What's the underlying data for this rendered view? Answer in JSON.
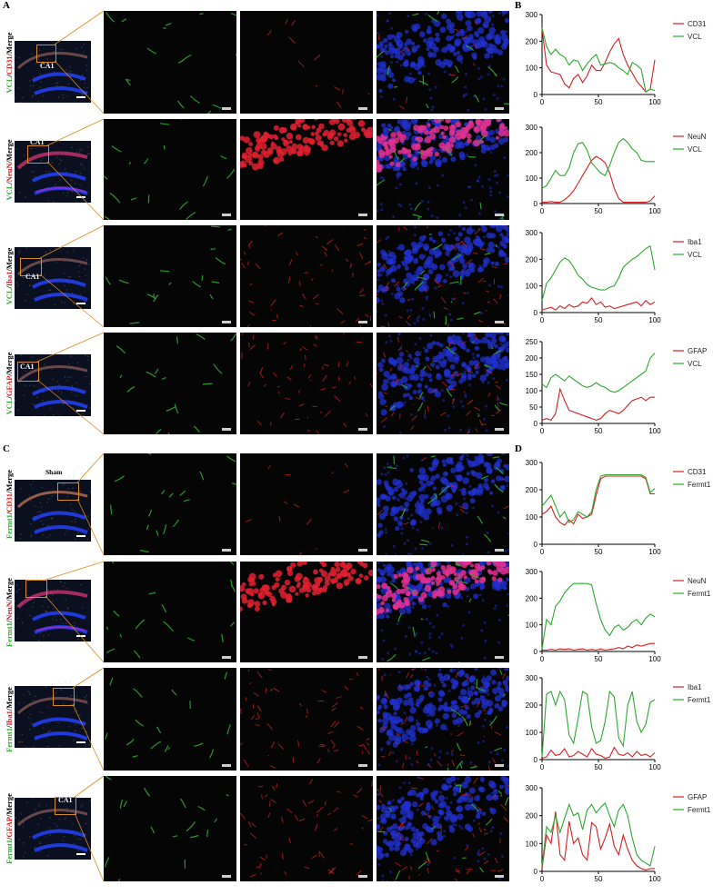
{
  "figure": {
    "panels": {
      "A": "A",
      "B": "B",
      "C": "C",
      "D": "D"
    },
    "overview_label": "CA1",
    "sham_label": "Sham",
    "rows": [
      {
        "green": "VCL",
        "red": "CD31",
        "merge": "Merge"
      },
      {
        "green": "VCL",
        "red": "NeuN",
        "merge": "Merge"
      },
      {
        "green": "VCL",
        "red": "Iba1",
        "merge": "Merge"
      },
      {
        "green": "VCL",
        "red": "GFAP",
        "merge": "Merge"
      },
      {
        "green": "Fermt1",
        "red": "CD31",
        "merge": "Merge"
      },
      {
        "green": "Fermt1",
        "red": "NeuN",
        "merge": "Merge"
      },
      {
        "green": "Fermt1",
        "red": "Iba1",
        "merge": "Merge"
      },
      {
        "green": "Fermt1",
        "red": "GFAP",
        "merge": "Merge"
      }
    ],
    "colors": {
      "green": "#2ea82e",
      "red": "#d42020",
      "blue": "#2030d0",
      "ca1_box": "#d98a1e"
    }
  },
  "chart_data": [
    {
      "type": "line",
      "panel": "B",
      "xlim": [
        0,
        100
      ],
      "ylim": [
        0,
        300
      ],
      "yticks": [
        0,
        100,
        200,
        300
      ],
      "xticks": [
        0,
        50,
        100
      ],
      "x": [
        0,
        4,
        8,
        12,
        16,
        20,
        24,
        28,
        32,
        36,
        40,
        44,
        48,
        52,
        56,
        60,
        64,
        68,
        72,
        76,
        80,
        84,
        88,
        92,
        96,
        100
      ],
      "series": [
        {
          "name": "CD31",
          "color": "#d42020",
          "values": [
            245,
            110,
            85,
            80,
            75,
            40,
            25,
            60,
            75,
            45,
            70,
            110,
            90,
            90,
            120,
            160,
            190,
            210,
            150,
            110,
            80,
            50,
            30,
            10,
            20,
            130
          ]
        },
        {
          "name": "VCL",
          "color": "#2ea82e",
          "values": [
            250,
            180,
            150,
            170,
            150,
            140,
            110,
            130,
            125,
            90,
            115,
            135,
            150,
            110,
            115,
            120,
            115,
            100,
            90,
            75,
            120,
            110,
            95,
            10,
            20,
            15
          ]
        }
      ]
    },
    {
      "type": "line",
      "panel": "B",
      "xlim": [
        0,
        100
      ],
      "ylim": [
        0,
        300
      ],
      "yticks": [
        0,
        100,
        200,
        300
      ],
      "xticks": [
        0,
        50,
        100
      ],
      "x": [
        0,
        4,
        8,
        12,
        16,
        20,
        24,
        28,
        32,
        36,
        40,
        44,
        48,
        52,
        56,
        60,
        64,
        68,
        72,
        76,
        80,
        84,
        88,
        92,
        96,
        100
      ],
      "series": [
        {
          "name": "NeuN",
          "color": "#d42020",
          "values": [
            5,
            5,
            8,
            5,
            5,
            15,
            30,
            50,
            80,
            110,
            140,
            170,
            185,
            175,
            160,
            120,
            60,
            20,
            5,
            5,
            5,
            5,
            5,
            5,
            10,
            30
          ]
        },
        {
          "name": "VCL",
          "color": "#2ea82e",
          "values": [
            60,
            70,
            100,
            130,
            110,
            110,
            140,
            200,
            235,
            240,
            210,
            160,
            140,
            120,
            110,
            150,
            200,
            240,
            255,
            240,
            215,
            200,
            170,
            165,
            165,
            165
          ]
        }
      ]
    },
    {
      "type": "line",
      "panel": "B",
      "xlim": [
        0,
        100
      ],
      "ylim": [
        0,
        300
      ],
      "yticks": [
        0,
        100,
        200,
        300
      ],
      "xticks": [
        0,
        50,
        100
      ],
      "x": [
        0,
        4,
        8,
        12,
        16,
        20,
        24,
        28,
        32,
        36,
        40,
        44,
        48,
        52,
        56,
        60,
        64,
        68,
        72,
        76,
        80,
        84,
        88,
        92,
        96,
        100
      ],
      "series": [
        {
          "name": "Iba1",
          "color": "#d42020",
          "values": [
            10,
            15,
            20,
            10,
            25,
            15,
            30,
            20,
            25,
            40,
            35,
            55,
            30,
            40,
            20,
            25,
            15,
            20,
            25,
            30,
            35,
            40,
            25,
            45,
            30,
            40
          ]
        },
        {
          "name": "VCL",
          "color": "#2ea82e",
          "values": [
            45,
            110,
            130,
            160,
            190,
            205,
            195,
            170,
            140,
            125,
            105,
            95,
            90,
            85,
            85,
            95,
            100,
            130,
            170,
            185,
            200,
            210,
            225,
            240,
            250,
            160
          ]
        }
      ]
    },
    {
      "type": "line",
      "panel": "B",
      "xlim": [
        0,
        100
      ],
      "ylim": [
        0,
        250
      ],
      "yticks": [
        0,
        50,
        100,
        150,
        200,
        250
      ],
      "xticks": [
        0,
        50,
        100
      ],
      "x": [
        0,
        4,
        8,
        12,
        16,
        20,
        24,
        28,
        32,
        36,
        40,
        44,
        48,
        52,
        56,
        60,
        64,
        68,
        72,
        76,
        80,
        84,
        88,
        92,
        96,
        100
      ],
      "series": [
        {
          "name": "GFAP",
          "color": "#d42020",
          "values": [
            10,
            15,
            10,
            30,
            105,
            70,
            40,
            35,
            30,
            25,
            20,
            15,
            10,
            15,
            30,
            40,
            35,
            30,
            40,
            55,
            70,
            75,
            80,
            70,
            80,
            80
          ]
        },
        {
          "name": "VCL",
          "color": "#2ea82e",
          "values": [
            120,
            110,
            140,
            150,
            140,
            130,
            145,
            135,
            125,
            115,
            110,
            115,
            125,
            115,
            110,
            100,
            95,
            100,
            110,
            120,
            130,
            140,
            150,
            160,
            200,
            215
          ]
        }
      ]
    },
    {
      "type": "line",
      "panel": "D",
      "xlim": [
        0,
        100
      ],
      "ylim": [
        0,
        300
      ],
      "yticks": [
        0,
        100,
        200,
        300
      ],
      "xticks": [
        0,
        50,
        100
      ],
      "x": [
        0,
        4,
        8,
        12,
        16,
        20,
        24,
        28,
        32,
        36,
        40,
        44,
        48,
        52,
        56,
        60,
        64,
        68,
        72,
        76,
        80,
        84,
        88,
        92,
        96,
        100
      ],
      "series": [
        {
          "name": "CD31",
          "color": "#d42020",
          "values": [
            110,
            120,
            140,
            100,
            80,
            70,
            90,
            75,
            110,
            95,
            100,
            110,
            180,
            240,
            250,
            250,
            250,
            250,
            250,
            250,
            250,
            250,
            250,
            240,
            185,
            185
          ]
        },
        {
          "name": "Fermt1",
          "color": "#2ea82e",
          "values": [
            140,
            160,
            180,
            140,
            100,
            120,
            80,
            90,
            120,
            110,
            100,
            120,
            200,
            250,
            255,
            255,
            255,
            255,
            255,
            255,
            255,
            255,
            255,
            245,
            190,
            205
          ]
        }
      ]
    },
    {
      "type": "line",
      "panel": "D",
      "xlim": [
        0,
        100
      ],
      "ylim": [
        0,
        300
      ],
      "yticks": [
        0,
        100,
        200,
        300
      ],
      "xticks": [
        0,
        50,
        100
      ],
      "x": [
        0,
        4,
        8,
        12,
        16,
        20,
        24,
        28,
        32,
        36,
        40,
        44,
        48,
        52,
        56,
        60,
        64,
        68,
        72,
        76,
        80,
        84,
        88,
        92,
        96,
        100
      ],
      "series": [
        {
          "name": "NeuN",
          "color": "#d42020",
          "values": [
            5,
            5,
            8,
            5,
            10,
            8,
            10,
            5,
            8,
            10,
            5,
            8,
            5,
            10,
            5,
            8,
            10,
            15,
            10,
            20,
            15,
            25,
            20,
            25,
            30,
            30
          ]
        },
        {
          "name": "Fermt1",
          "color": "#2ea82e",
          "values": [
            10,
            120,
            100,
            170,
            190,
            220,
            240,
            255,
            255,
            255,
            255,
            250,
            180,
            120,
            80,
            60,
            90,
            100,
            80,
            90,
            110,
            120,
            100,
            125,
            140,
            130
          ]
        }
      ]
    },
    {
      "type": "line",
      "panel": "D",
      "xlim": [
        0,
        100
      ],
      "ylim": [
        0,
        300
      ],
      "yticks": [
        0,
        100,
        200,
        300
      ],
      "xticks": [
        0,
        50,
        100
      ],
      "x": [
        0,
        4,
        8,
        12,
        16,
        20,
        24,
        28,
        32,
        36,
        40,
        44,
        48,
        52,
        56,
        60,
        64,
        68,
        72,
        76,
        80,
        84,
        88,
        92,
        96,
        100
      ],
      "series": [
        {
          "name": "Iba1",
          "color": "#d42020",
          "values": [
            5,
            10,
            35,
            15,
            20,
            40,
            10,
            15,
            30,
            20,
            10,
            40,
            20,
            15,
            5,
            10,
            45,
            20,
            15,
            25,
            10,
            30,
            15,
            20,
            10,
            25
          ]
        },
        {
          "name": "Fermt1",
          "color": "#2ea82e",
          "values": [
            10,
            240,
            250,
            200,
            250,
            220,
            90,
            60,
            150,
            250,
            240,
            120,
            60,
            70,
            140,
            250,
            230,
            80,
            50,
            200,
            250,
            140,
            100,
            130,
            210,
            220
          ]
        }
      ]
    },
    {
      "type": "line",
      "panel": "D",
      "xlim": [
        0,
        100
      ],
      "ylim": [
        0,
        300
      ],
      "yticks": [
        0,
        100,
        200,
        300
      ],
      "xticks": [
        0,
        50,
        100
      ],
      "x": [
        0,
        4,
        8,
        12,
        16,
        20,
        24,
        28,
        32,
        36,
        40,
        44,
        48,
        52,
        56,
        60,
        64,
        68,
        72,
        76,
        80,
        84,
        88,
        92,
        96,
        100
      ],
      "series": [
        {
          "name": "GFAP",
          "color": "#d42020",
          "values": [
            10,
            130,
            100,
            215,
            60,
            40,
            180,
            100,
            120,
            60,
            40,
            175,
            160,
            80,
            120,
            170,
            90,
            60,
            130,
            80,
            40,
            20,
            10,
            5,
            10,
            10
          ]
        },
        {
          "name": "Fermt1",
          "color": "#2ea82e",
          "values": [
            20,
            160,
            140,
            200,
            140,
            190,
            240,
            200,
            210,
            150,
            220,
            240,
            210,
            230,
            245,
            200,
            160,
            220,
            240,
            200,
            120,
            60,
            40,
            30,
            20,
            90
          ]
        }
      ]
    }
  ]
}
